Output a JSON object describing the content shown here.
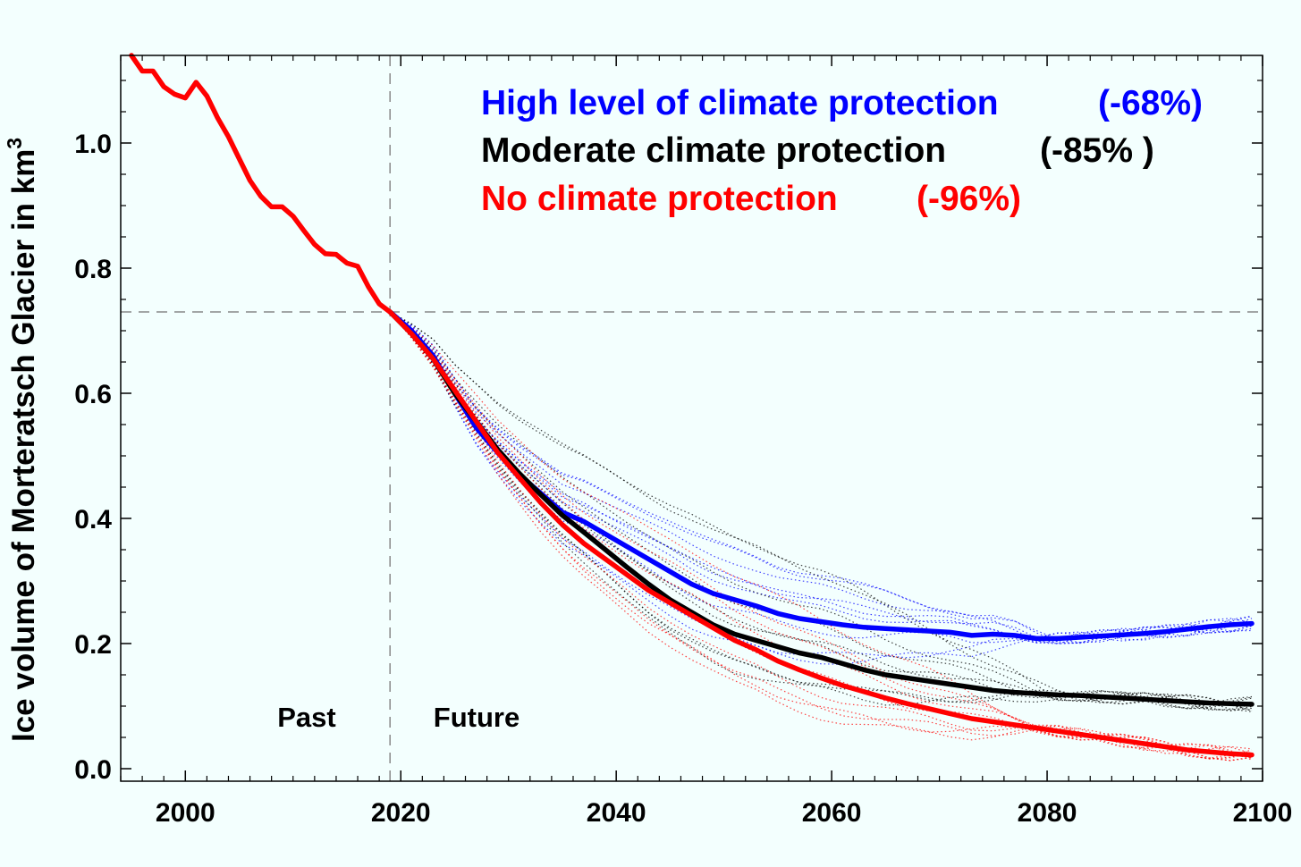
{
  "chart_data": {
    "type": "line",
    "xlabel": "",
    "ylabel": "Ice volume of Morteratsch Glacier in km",
    "ylabel_superscript": "3",
    "xlim": [
      1994,
      2100
    ],
    "ylim": [
      -0.02,
      1.14
    ],
    "x_ticks": [
      2000,
      2020,
      2040,
      2060,
      2080,
      2100
    ],
    "x_tick_labels": [
      "2000",
      "2020",
      "2040",
      "2060",
      "2080",
      "2100"
    ],
    "y_ticks": [
      0.0,
      0.2,
      0.4,
      0.6,
      0.8,
      1.0
    ],
    "y_tick_labels": [
      "0.0",
      "0.2",
      "0.4",
      "0.6",
      "0.8",
      "1.0"
    ],
    "reference_lines": {
      "present_year": 2019,
      "present_volume": 0.73
    },
    "annotations": {
      "past": "Past",
      "future": "Future"
    },
    "legend": [
      {
        "label": "High level of climate protection",
        "change": "(-68%)",
        "color": "#0000ff"
      },
      {
        "label": "Moderate climate protection",
        "change": "(-85% )",
        "color": "#000000"
      },
      {
        "label": "No climate protection",
        "change": "(-96%)",
        "color": "#ff0000"
      }
    ],
    "series": [
      {
        "name": "Past",
        "color": "#ff0000",
        "x": [
          1995,
          1996,
          1997,
          1998,
          1999,
          2000,
          2001,
          2002,
          2003,
          2004,
          2005,
          2006,
          2007,
          2008,
          2009,
          2010,
          2011,
          2012,
          2013,
          2014,
          2015,
          2016,
          2017,
          2018,
          2019
        ],
        "y": [
          1.14,
          1.115,
          1.115,
          1.09,
          1.078,
          1.072,
          1.097,
          1.075,
          1.04,
          1.01,
          0.975,
          0.94,
          0.915,
          0.898,
          0.898,
          0.883,
          0.86,
          0.838,
          0.823,
          0.822,
          0.808,
          0.803,
          0.77,
          0.743,
          0.73
        ]
      },
      {
        "name": "High level of climate protection",
        "color": "#0000ff",
        "x": [
          2019,
          2021,
          2023,
          2025,
          2027,
          2029,
          2031,
          2033,
          2035,
          2037,
          2039,
          2041,
          2043,
          2045,
          2047,
          2049,
          2051,
          2053,
          2055,
          2057,
          2059,
          2061,
          2063,
          2065,
          2067,
          2069,
          2071,
          2073,
          2075,
          2077,
          2079,
          2081,
          2083,
          2085,
          2087,
          2089,
          2091,
          2093,
          2095,
          2097,
          2099
        ],
        "y": [
          0.73,
          0.7,
          0.66,
          0.6,
          0.545,
          0.505,
          0.47,
          0.44,
          0.41,
          0.395,
          0.375,
          0.355,
          0.335,
          0.315,
          0.295,
          0.28,
          0.27,
          0.26,
          0.248,
          0.24,
          0.235,
          0.23,
          0.226,
          0.224,
          0.222,
          0.22,
          0.218,
          0.213,
          0.215,
          0.213,
          0.208,
          0.208,
          0.21,
          0.212,
          0.214,
          0.216,
          0.219,
          0.223,
          0.227,
          0.23,
          0.232
        ]
      },
      {
        "name": "Moderate climate protection",
        "color": "#000000",
        "x": [
          2019,
          2021,
          2023,
          2025,
          2027,
          2029,
          2031,
          2033,
          2035,
          2037,
          2039,
          2041,
          2043,
          2045,
          2047,
          2049,
          2051,
          2053,
          2055,
          2057,
          2059,
          2061,
          2063,
          2065,
          2067,
          2069,
          2071,
          2073,
          2075,
          2077,
          2079,
          2081,
          2083,
          2085,
          2087,
          2089,
          2091,
          2093,
          2095,
          2097,
          2099
        ],
        "y": [
          0.73,
          0.695,
          0.655,
          0.6,
          0.555,
          0.51,
          0.472,
          0.438,
          0.405,
          0.378,
          0.35,
          0.322,
          0.295,
          0.27,
          0.25,
          0.23,
          0.215,
          0.205,
          0.195,
          0.185,
          0.178,
          0.168,
          0.158,
          0.15,
          0.145,
          0.14,
          0.135,
          0.13,
          0.125,
          0.122,
          0.12,
          0.118,
          0.117,
          0.115,
          0.113,
          0.111,
          0.109,
          0.107,
          0.105,
          0.104,
          0.103
        ]
      },
      {
        "name": "No climate protection",
        "color": "#ff0000",
        "x": [
          2019,
          2021,
          2023,
          2025,
          2027,
          2029,
          2031,
          2033,
          2035,
          2037,
          2039,
          2041,
          2043,
          2045,
          2047,
          2049,
          2051,
          2053,
          2055,
          2057,
          2059,
          2061,
          2063,
          2065,
          2067,
          2069,
          2071,
          2073,
          2075,
          2077,
          2079,
          2081,
          2083,
          2085,
          2087,
          2089,
          2091,
          2093,
          2095,
          2097,
          2099
        ],
        "y": [
          0.73,
          0.695,
          0.655,
          0.605,
          0.555,
          0.505,
          0.465,
          0.425,
          0.39,
          0.36,
          0.335,
          0.31,
          0.285,
          0.265,
          0.245,
          0.225,
          0.205,
          0.19,
          0.172,
          0.158,
          0.145,
          0.133,
          0.123,
          0.113,
          0.104,
          0.096,
          0.088,
          0.08,
          0.075,
          0.07,
          0.065,
          0.06,
          0.055,
          0.05,
          0.045,
          0.04,
          0.035,
          0.03,
          0.027,
          0.024,
          0.022
        ]
      }
    ]
  }
}
